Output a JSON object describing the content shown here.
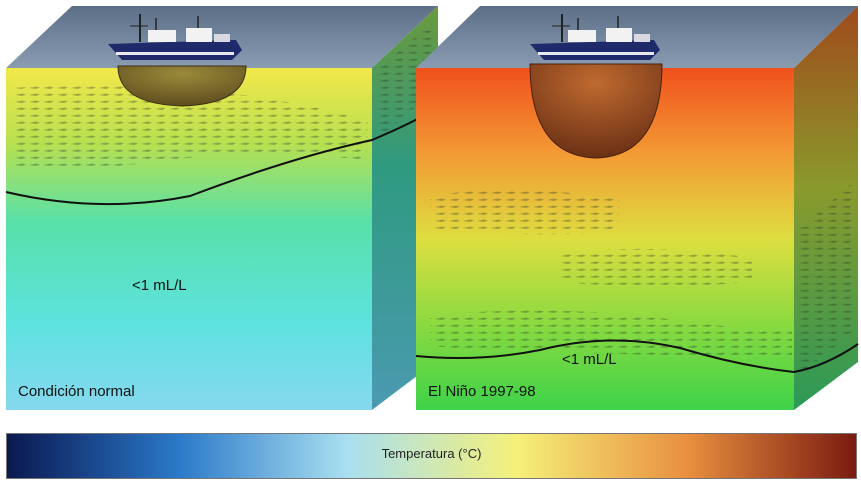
{
  "panels": [
    {
      "condition_label": "Condición normal",
      "oxygen_label": "<1 mL/L"
    },
    {
      "condition_label": "El Niño 1997-98",
      "oxygen_label": "<1 mL/L"
    }
  ],
  "colorbar": {
    "label": "Temperatura (°C)",
    "colors": [
      "#0b1850",
      "#2a78c8",
      "#a9dff0",
      "#f5f07a",
      "#e99040",
      "#7a1a10"
    ]
  }
}
